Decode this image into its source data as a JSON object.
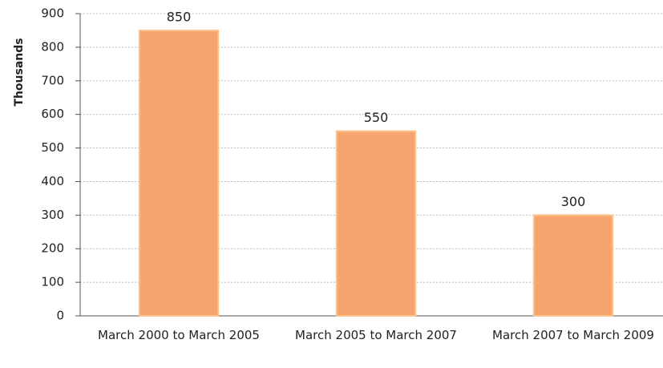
{
  "chart_data": {
    "type": "bar",
    "y_label": "Thousands",
    "categories": [
      "March 2000 to March 2005",
      "March 2005 to March 2007",
      "March 2007 to March 2009"
    ],
    "values": [
      850,
      550,
      300
    ],
    "color": "#f7a46e",
    "ylim": [
      0,
      900
    ],
    "yticks": [
      0,
      100,
      200,
      300,
      400,
      500,
      600,
      700,
      800,
      900
    ],
    "grid": true
  }
}
